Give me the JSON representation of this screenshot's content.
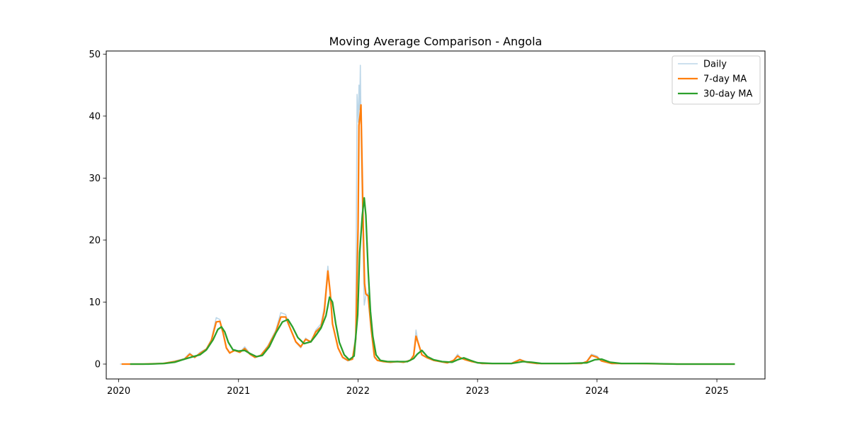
{
  "chart_data": {
    "type": "line",
    "title": "Moving Average Comparison - Angola",
    "xlabel": "",
    "ylabel": "",
    "x_ticks": [
      "2020",
      "2021",
      "2022",
      "2023",
      "2024",
      "2025"
    ],
    "y_ticks": [
      "0",
      "10",
      "20",
      "30",
      "40",
      "50"
    ],
    "xlim": [
      "2019-11-24",
      "2025-05-28"
    ],
    "ylim": [
      -2.4,
      50.5
    ],
    "grid": false,
    "legend_position": "top-right",
    "series": [
      {
        "name": "Daily",
        "color": "#1f77b4",
        "opacity": 0.3,
        "points": [
          [
            "2020-01-05",
            0.0
          ],
          [
            "2020-03-15",
            0.0
          ],
          [
            "2020-05-15",
            0.1
          ],
          [
            "2020-06-20",
            0.5
          ],
          [
            "2020-07-20",
            0.9
          ],
          [
            "2020-08-05",
            1.8
          ],
          [
            "2020-08-20",
            1.0
          ],
          [
            "2020-09-05",
            1.9
          ],
          [
            "2020-09-25",
            2.5
          ],
          [
            "2020-10-10",
            4.0
          ],
          [
            "2020-10-25",
            7.5
          ],
          [
            "2020-11-05",
            7.2
          ],
          [
            "2020-11-15",
            5.0
          ],
          [
            "2020-11-25",
            2.5
          ],
          [
            "2020-12-05",
            1.7
          ],
          [
            "2020-12-20",
            2.4
          ],
          [
            "2021-01-05",
            1.9
          ],
          [
            "2021-01-20",
            2.8
          ],
          [
            "2021-02-05",
            1.7
          ],
          [
            "2021-02-20",
            1.0
          ],
          [
            "2021-03-10",
            1.5
          ],
          [
            "2021-04-01",
            3.0
          ],
          [
            "2021-04-25",
            5.5
          ],
          [
            "2021-05-10",
            8.3
          ],
          [
            "2021-05-25",
            8.0
          ],
          [
            "2021-06-10",
            5.5
          ],
          [
            "2021-06-25",
            3.5
          ],
          [
            "2021-07-10",
            2.6
          ],
          [
            "2021-07-25",
            4.2
          ],
          [
            "2021-08-10",
            3.5
          ],
          [
            "2021-08-25",
            5.5
          ],
          [
            "2021-09-10",
            6.5
          ],
          [
            "2021-09-20",
            9.2
          ],
          [
            "2021-10-01",
            15.8
          ],
          [
            "2021-10-08",
            11.0
          ],
          [
            "2021-10-15",
            6.5
          ],
          [
            "2021-11-01",
            2.5
          ],
          [
            "2021-11-15",
            1.0
          ],
          [
            "2021-12-01",
            0.5
          ],
          [
            "2021-12-15",
            0.8
          ],
          [
            "2021-12-25",
            5.0
          ],
          [
            "2021-12-29",
            43.5
          ],
          [
            "2022-01-02",
            39.0
          ],
          [
            "2022-01-04",
            45.0
          ],
          [
            "2022-01-06",
            41.0
          ],
          [
            "2022-01-08",
            48.2
          ],
          [
            "2022-01-11",
            35.0
          ],
          [
            "2022-01-16",
            20.0
          ],
          [
            "2022-01-20",
            9.5
          ],
          [
            "2022-01-25",
            11.0
          ],
          [
            "2022-02-01",
            11.5
          ],
          [
            "2022-02-10",
            5.5
          ],
          [
            "2022-02-20",
            1.0
          ],
          [
            "2022-03-01",
            0.6
          ],
          [
            "2022-03-20",
            0.4
          ],
          [
            "2022-04-10",
            0.3
          ],
          [
            "2022-05-01",
            0.5
          ],
          [
            "2022-05-20",
            0.3
          ],
          [
            "2022-06-10",
            0.7
          ],
          [
            "2022-06-20",
            1.5
          ],
          [
            "2022-06-27",
            5.5
          ],
          [
            "2022-07-05",
            3.0
          ],
          [
            "2022-07-15",
            1.5
          ],
          [
            "2022-08-01",
            1.0
          ],
          [
            "2022-08-20",
            0.7
          ],
          [
            "2022-09-10",
            0.4
          ],
          [
            "2022-10-01",
            0.2
          ],
          [
            "2022-10-20",
            0.6
          ],
          [
            "2022-11-01",
            1.6
          ],
          [
            "2022-11-10",
            1.0
          ],
          [
            "2022-11-25",
            0.8
          ],
          [
            "2022-12-15",
            0.4
          ],
          [
            "2023-01-15",
            0.1
          ],
          [
            "2023-03-01",
            0.1
          ],
          [
            "2023-04-15",
            0.1
          ],
          [
            "2023-05-10",
            0.8
          ],
          [
            "2023-06-01",
            0.3
          ],
          [
            "2023-07-01",
            0.1
          ],
          [
            "2023-09-01",
            0.1
          ],
          [
            "2023-11-15",
            0.1
          ],
          [
            "2023-12-01",
            0.5
          ],
          [
            "2023-12-15",
            1.6
          ],
          [
            "2024-01-01",
            1.3
          ],
          [
            "2024-01-15",
            0.5
          ],
          [
            "2024-02-15",
            0.1
          ],
          [
            "2024-05-01",
            0.1
          ],
          [
            "2024-09-01",
            0.0
          ],
          [
            "2025-01-01",
            0.0
          ],
          [
            "2025-02-25",
            0.0
          ]
        ]
      },
      {
        "name": "7-day MA",
        "color": "#ff7f0e",
        "opacity": 1.0,
        "points": [
          [
            "2020-01-10",
            0.0
          ],
          [
            "2020-03-15",
            0.0
          ],
          [
            "2020-05-15",
            0.1
          ],
          [
            "2020-06-20",
            0.4
          ],
          [
            "2020-07-20",
            0.8
          ],
          [
            "2020-08-05",
            1.6
          ],
          [
            "2020-08-20",
            1.1
          ],
          [
            "2020-09-05",
            1.7
          ],
          [
            "2020-09-25",
            2.4
          ],
          [
            "2020-10-10",
            3.8
          ],
          [
            "2020-10-25",
            6.8
          ],
          [
            "2020-11-05",
            6.9
          ],
          [
            "2020-11-15",
            5.0
          ],
          [
            "2020-11-25",
            2.6
          ],
          [
            "2020-12-05",
            1.8
          ],
          [
            "2020-12-20",
            2.2
          ],
          [
            "2021-01-05",
            1.9
          ],
          [
            "2021-01-20",
            2.5
          ],
          [
            "2021-02-05",
            1.6
          ],
          [
            "2021-02-20",
            1.1
          ],
          [
            "2021-03-10",
            1.4
          ],
          [
            "2021-04-01",
            2.8
          ],
          [
            "2021-04-25",
            5.2
          ],
          [
            "2021-05-10",
            7.6
          ],
          [
            "2021-05-25",
            7.6
          ],
          [
            "2021-06-10",
            5.5
          ],
          [
            "2021-06-25",
            3.6
          ],
          [
            "2021-07-10",
            2.8
          ],
          [
            "2021-07-25",
            4.0
          ],
          [
            "2021-08-10",
            3.6
          ],
          [
            "2021-08-25",
            5.2
          ],
          [
            "2021-09-10",
            6.0
          ],
          [
            "2021-09-20",
            8.5
          ],
          [
            "2021-10-01",
            15.0
          ],
          [
            "2021-10-08",
            11.5
          ],
          [
            "2021-10-15",
            6.5
          ],
          [
            "2021-11-01",
            2.6
          ],
          [
            "2021-11-15",
            1.1
          ],
          [
            "2021-12-01",
            0.6
          ],
          [
            "2021-12-15",
            0.8
          ],
          [
            "2021-12-25",
            4.0
          ],
          [
            "2022-01-01",
            22.0
          ],
          [
            "2022-01-04",
            38.5
          ],
          [
            "2022-01-07",
            40.0
          ],
          [
            "2022-01-10",
            41.8
          ],
          [
            "2022-01-13",
            33.0
          ],
          [
            "2022-01-17",
            22.0
          ],
          [
            "2022-01-21",
            13.0
          ],
          [
            "2022-01-25",
            11.3
          ],
          [
            "2022-02-01",
            11.0
          ],
          [
            "2022-02-10",
            5.8
          ],
          [
            "2022-02-20",
            1.2
          ],
          [
            "2022-03-01",
            0.6
          ],
          [
            "2022-03-20",
            0.4
          ],
          [
            "2022-04-10",
            0.3
          ],
          [
            "2022-05-01",
            0.4
          ],
          [
            "2022-05-20",
            0.3
          ],
          [
            "2022-06-10",
            0.6
          ],
          [
            "2022-06-20",
            1.4
          ],
          [
            "2022-06-27",
            4.5
          ],
          [
            "2022-07-05",
            3.2
          ],
          [
            "2022-07-15",
            1.5
          ],
          [
            "2022-08-01",
            1.0
          ],
          [
            "2022-08-20",
            0.6
          ],
          [
            "2022-09-10",
            0.4
          ],
          [
            "2022-10-01",
            0.2
          ],
          [
            "2022-10-20",
            0.6
          ],
          [
            "2022-11-01",
            1.3
          ],
          [
            "2022-11-10",
            1.0
          ],
          [
            "2022-11-25",
            0.7
          ],
          [
            "2022-12-15",
            0.4
          ],
          [
            "2023-01-15",
            0.1
          ],
          [
            "2023-03-01",
            0.1
          ],
          [
            "2023-04-15",
            0.1
          ],
          [
            "2023-05-10",
            0.7
          ],
          [
            "2023-06-01",
            0.3
          ],
          [
            "2023-07-01",
            0.1
          ],
          [
            "2023-09-01",
            0.1
          ],
          [
            "2023-11-15",
            0.1
          ],
          [
            "2023-12-01",
            0.4
          ],
          [
            "2023-12-15",
            1.4
          ],
          [
            "2024-01-01",
            1.1
          ],
          [
            "2024-01-15",
            0.5
          ],
          [
            "2024-02-15",
            0.1
          ],
          [
            "2024-05-01",
            0.1
          ],
          [
            "2024-09-01",
            0.0
          ],
          [
            "2025-01-01",
            0.0
          ],
          [
            "2025-02-25",
            0.0
          ]
        ]
      },
      {
        "name": "30-day MA",
        "color": "#2ca02c",
        "opacity": 1.0,
        "points": [
          [
            "2020-02-05",
            0.0
          ],
          [
            "2020-04-01",
            0.0
          ],
          [
            "2020-05-20",
            0.1
          ],
          [
            "2020-06-20",
            0.3
          ],
          [
            "2020-07-20",
            0.8
          ],
          [
            "2020-08-15",
            1.2
          ],
          [
            "2020-09-05",
            1.5
          ],
          [
            "2020-09-25",
            2.3
          ],
          [
            "2020-10-15",
            3.9
          ],
          [
            "2020-10-30",
            5.6
          ],
          [
            "2020-11-10",
            6.0
          ],
          [
            "2020-11-20",
            5.2
          ],
          [
            "2020-12-01",
            3.5
          ],
          [
            "2020-12-15",
            2.3
          ],
          [
            "2021-01-01",
            2.1
          ],
          [
            "2021-01-20",
            2.2
          ],
          [
            "2021-02-05",
            1.7
          ],
          [
            "2021-02-25",
            1.2
          ],
          [
            "2021-03-15",
            1.4
          ],
          [
            "2021-04-05",
            2.8
          ],
          [
            "2021-04-25",
            5.0
          ],
          [
            "2021-05-15",
            6.8
          ],
          [
            "2021-06-01",
            7.2
          ],
          [
            "2021-06-15",
            6.0
          ],
          [
            "2021-07-01",
            4.3
          ],
          [
            "2021-07-20",
            3.3
          ],
          [
            "2021-08-10",
            3.6
          ],
          [
            "2021-08-25",
            4.6
          ],
          [
            "2021-09-10",
            5.8
          ],
          [
            "2021-09-25",
            7.8
          ],
          [
            "2021-10-06",
            10.8
          ],
          [
            "2021-10-15",
            10.0
          ],
          [
            "2021-10-25",
            6.5
          ],
          [
            "2021-11-05",
            3.5
          ],
          [
            "2021-11-20",
            1.5
          ],
          [
            "2021-12-05",
            0.7
          ],
          [
            "2021-12-20",
            1.3
          ],
          [
            "2021-12-31",
            8.0
          ],
          [
            "2022-01-06",
            18.0
          ],
          [
            "2022-01-14",
            24.0
          ],
          [
            "2022-01-20",
            26.8
          ],
          [
            "2022-01-25",
            24.0
          ],
          [
            "2022-02-01",
            15.0
          ],
          [
            "2022-02-08",
            8.5
          ],
          [
            "2022-02-15",
            4.5
          ],
          [
            "2022-02-25",
            1.5
          ],
          [
            "2022-03-10",
            0.6
          ],
          [
            "2022-04-01",
            0.4
          ],
          [
            "2022-05-01",
            0.4
          ],
          [
            "2022-06-01",
            0.4
          ],
          [
            "2022-06-20",
            0.9
          ],
          [
            "2022-07-01",
            1.6
          ],
          [
            "2022-07-15",
            2.2
          ],
          [
            "2022-08-01",
            1.2
          ],
          [
            "2022-08-20",
            0.7
          ],
          [
            "2022-09-15",
            0.4
          ],
          [
            "2022-10-15",
            0.3
          ],
          [
            "2022-11-01",
            0.7
          ],
          [
            "2022-11-20",
            1.0
          ],
          [
            "2022-12-10",
            0.6
          ],
          [
            "2023-01-01",
            0.2
          ],
          [
            "2023-02-15",
            0.1
          ],
          [
            "2023-04-15",
            0.1
          ],
          [
            "2023-05-20",
            0.4
          ],
          [
            "2023-06-15",
            0.3
          ],
          [
            "2023-07-15",
            0.1
          ],
          [
            "2023-10-01",
            0.1
          ],
          [
            "2023-12-01",
            0.2
          ],
          [
            "2023-12-25",
            0.7
          ],
          [
            "2024-01-15",
            0.8
          ],
          [
            "2024-02-10",
            0.3
          ],
          [
            "2024-03-15",
            0.1
          ],
          [
            "2024-06-01",
            0.1
          ],
          [
            "2024-09-01",
            0.0
          ],
          [
            "2025-01-01",
            0.0
          ],
          [
            "2025-02-25",
            0.0
          ]
        ]
      }
    ]
  }
}
